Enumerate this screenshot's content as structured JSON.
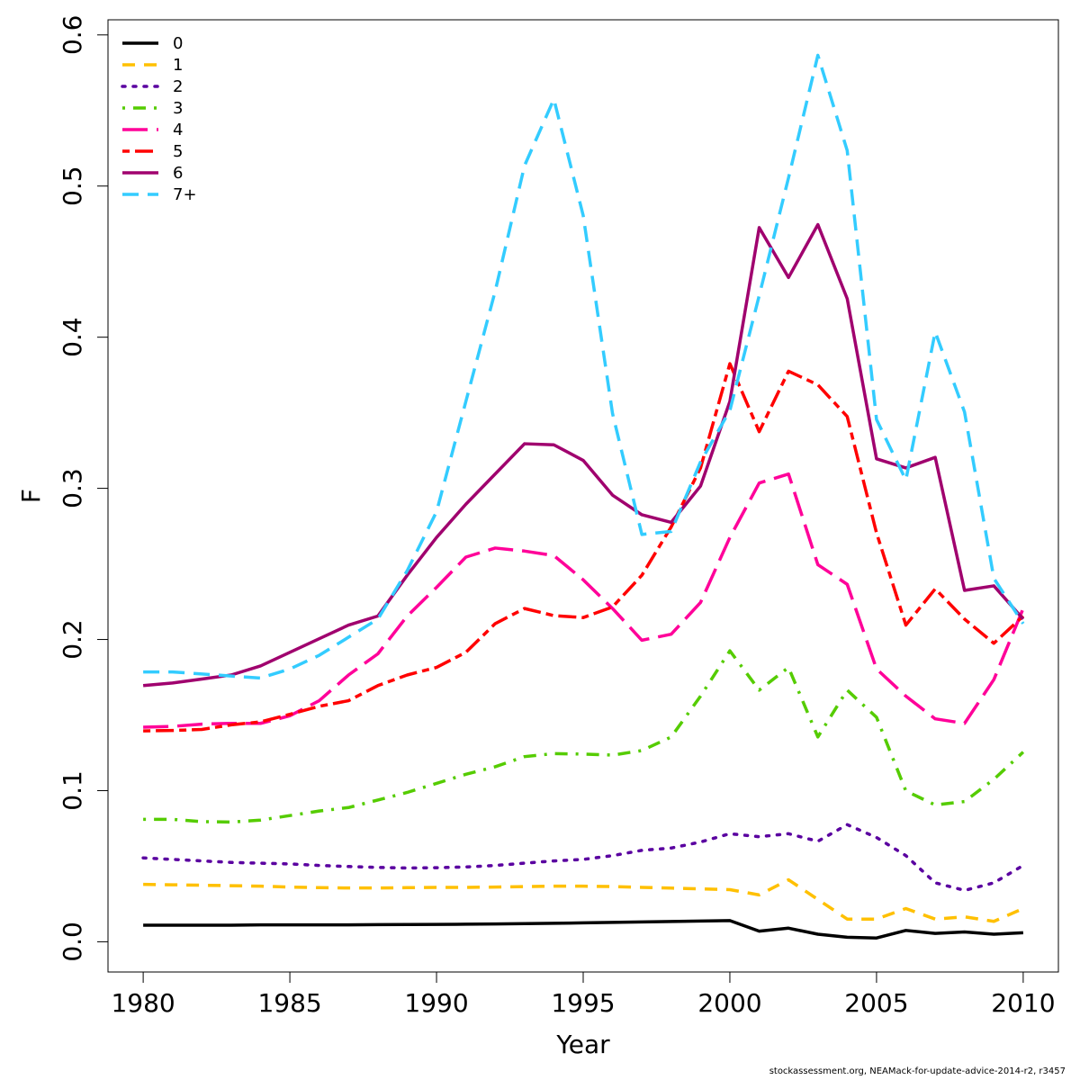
{
  "chart_data": {
    "type": "line",
    "xlabel": "Year",
    "ylabel": "F",
    "xlim": [
      1978.8,
      2011.2
    ],
    "ylim": [
      -0.02,
      0.61
    ],
    "x_ticks": [
      1980,
      1985,
      1990,
      1995,
      2000,
      2005,
      2010
    ],
    "y_ticks": [
      "0.0",
      "0.1",
      "0.2",
      "0.3",
      "0.4",
      "0.5",
      "0.6"
    ],
    "legend_position": "top-left",
    "box": true,
    "x": [
      1980,
      1981,
      1982,
      1983,
      1984,
      1985,
      1986,
      1987,
      1988,
      1989,
      1990,
      1991,
      1992,
      1993,
      1994,
      1995,
      1996,
      1997,
      1998,
      1999,
      2000,
      2001,
      2002,
      2003,
      2004,
      2005,
      2006,
      2007,
      2008,
      2009,
      2010
    ],
    "series": [
      {
        "name": "0",
        "color": "#000000",
        "dash": "solid",
        "values": [
          0.011,
          0.011,
          0.011,
          0.011,
          0.0112,
          0.0112,
          0.0112,
          0.0112,
          0.0113,
          0.0114,
          0.0115,
          0.0116,
          0.0118,
          0.012,
          0.0122,
          0.0125,
          0.0128,
          0.0131,
          0.0134,
          0.0137,
          0.014,
          0.007,
          0.009,
          0.005,
          0.003,
          0.0025,
          0.0075,
          0.0055,
          0.0065,
          0.005,
          0.006
        ]
      },
      {
        "name": "1",
        "color": "#FFC000",
        "dash": "dashed",
        "values": [
          0.038,
          0.0377,
          0.0374,
          0.0371,
          0.0368,
          0.0362,
          0.0358,
          0.0356,
          0.0356,
          0.0358,
          0.036,
          0.036,
          0.0362,
          0.0365,
          0.0368,
          0.0368,
          0.0365,
          0.036,
          0.0355,
          0.035,
          0.0345,
          0.031,
          0.041,
          0.028,
          0.015,
          0.015,
          0.022,
          0.015,
          0.0165,
          0.0135,
          0.022
        ]
      },
      {
        "name": "2",
        "color": "#5A00A0",
        "dash": "dotted",
        "values": [
          0.0555,
          0.0545,
          0.0535,
          0.0525,
          0.052,
          0.0515,
          0.0505,
          0.0498,
          0.0492,
          0.0488,
          0.049,
          0.0495,
          0.0505,
          0.052,
          0.0535,
          0.0545,
          0.057,
          0.0605,
          0.062,
          0.066,
          0.0715,
          0.0695,
          0.0715,
          0.0665,
          0.0775,
          0.069,
          0.057,
          0.039,
          0.034,
          0.039,
          0.0505
        ]
      },
      {
        "name": "3",
        "color": "#55CC00",
        "dash": "dotdash",
        "values": [
          0.081,
          0.081,
          0.0795,
          0.0792,
          0.0805,
          0.0835,
          0.0865,
          0.0888,
          0.0938,
          0.0988,
          0.1048,
          0.1108,
          0.1158,
          0.1225,
          0.1245,
          0.1242,
          0.1235,
          0.1265,
          0.1355,
          0.1625,
          0.1925,
          0.1665,
          0.1815,
          0.1355,
          0.1665,
          0.1485,
          0.0998,
          0.0905,
          0.0928,
          0.1075,
          0.1255
        ]
      },
      {
        "name": "4",
        "color": "#FF0099",
        "dash": "longdash",
        "values": [
          0.142,
          0.1425,
          0.144,
          0.1445,
          0.1445,
          0.1495,
          0.1595,
          0.1765,
          0.1905,
          0.2155,
          0.2345,
          0.2545,
          0.2605,
          0.2585,
          0.2555,
          0.2395,
          0.2205,
          0.1995,
          0.2035,
          0.2245,
          0.2675,
          0.3035,
          0.3095,
          0.2495,
          0.2365,
          0.1805,
          0.1625,
          0.1475,
          0.1445,
          0.1735,
          0.2205
        ]
      },
      {
        "name": "5",
        "color": "#FF0000",
        "dash": "twodash",
        "values": [
          0.1395,
          0.1398,
          0.1405,
          0.1435,
          0.1455,
          0.1505,
          0.1558,
          0.1595,
          0.1695,
          0.1765,
          0.1815,
          0.1915,
          0.2105,
          0.2205,
          0.2158,
          0.2145,
          0.2215,
          0.2425,
          0.2745,
          0.3135,
          0.3825,
          0.3375,
          0.3775,
          0.3685,
          0.3475,
          0.2705,
          0.2095,
          0.2335,
          0.2135,
          0.1975,
          0.2155
        ]
      },
      {
        "name": "6",
        "color": "#A0006E",
        "dash": "solid",
        "values": [
          0.1695,
          0.1712,
          0.1738,
          0.1765,
          0.1825,
          0.1915,
          0.2005,
          0.2095,
          0.2155,
          0.2425,
          0.2675,
          0.2895,
          0.3095,
          0.3295,
          0.3288,
          0.3185,
          0.2955,
          0.2825,
          0.2775,
          0.3015,
          0.3575,
          0.4725,
          0.4395,
          0.4745,
          0.4255,
          0.3195,
          0.3135,
          0.3205,
          0.2325,
          0.2355,
          0.2135
        ]
      },
      {
        "name": "7+",
        "color": "#33CCFF",
        "dash": "shortdash",
        "values": [
          0.1785,
          0.1785,
          0.1772,
          0.1758,
          0.1745,
          0.1805,
          0.1895,
          0.2015,
          0.2135,
          0.2455,
          0.2845,
          0.3575,
          0.4305,
          0.5135,
          0.5575,
          0.4805,
          0.3495,
          0.2695,
          0.2715,
          0.3175,
          0.3515,
          0.4275,
          0.5055,
          0.5865,
          0.5235,
          0.3455,
          0.3055,
          0.4035,
          0.3505,
          0.2405,
          0.2105
        ]
      }
    ]
  },
  "footer_text": "stockassessment.org, NEAMack-for-update-advice-2014-r2, r3457"
}
